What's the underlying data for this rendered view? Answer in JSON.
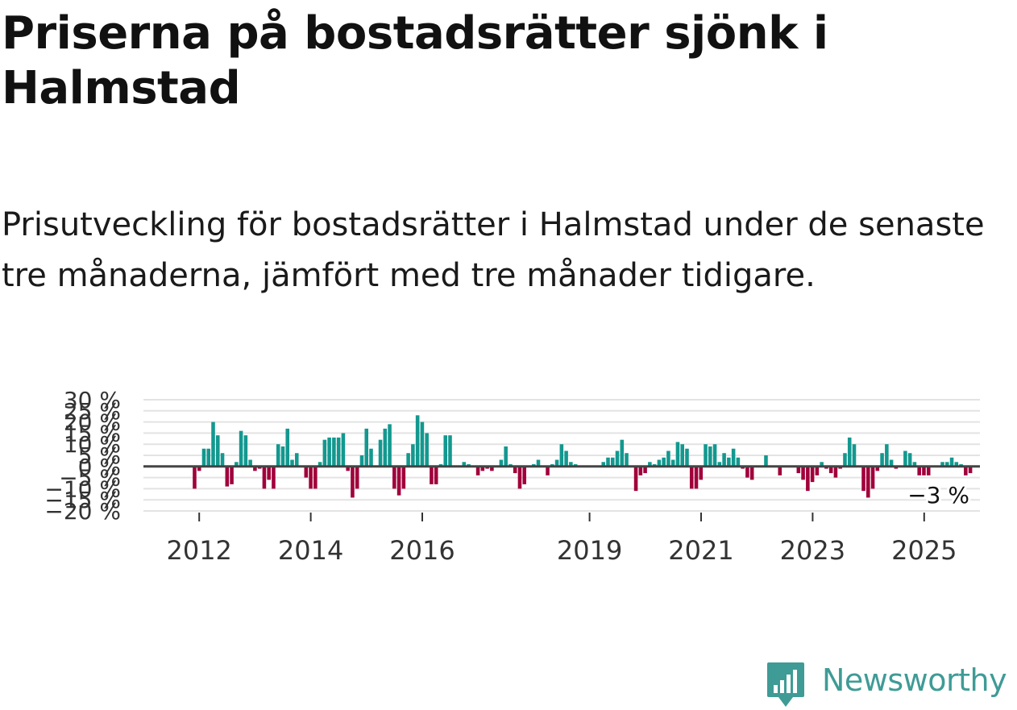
{
  "header": {
    "title": "Priserna på bostadsrätter sjönk i Halmstad",
    "subtitle": "Prisutveckling för bostadsrätter i Halmstad under de senaste tre månaderna, jämfört med tre månader tidigare."
  },
  "branding": {
    "logo_text": "Newsworthy",
    "logo_color": "#3f9b96"
  },
  "colors": {
    "positive": "#13988f",
    "negative": "#a0003a",
    "grid": "#e3e3e3",
    "zero_line": "#444444"
  },
  "chart_data": {
    "type": "bar",
    "title": "",
    "xlabel": "",
    "ylabel": "",
    "ylim": [
      -20,
      30
    ],
    "y_ticks": [
      {
        "value": 30,
        "label": "30 %"
      },
      {
        "value": 25,
        "label": "25 %"
      },
      {
        "value": 20,
        "label": "20 %"
      },
      {
        "value": 15,
        "label": "15 %"
      },
      {
        "value": 10,
        "label": "10 %"
      },
      {
        "value": 5,
        "label": "5 %"
      },
      {
        "value": 0,
        "label": "0 %"
      },
      {
        "value": -5,
        "label": "−5 %"
      },
      {
        "value": -10,
        "label": "−10 %"
      },
      {
        "value": -15,
        "label": "−15 %"
      },
      {
        "value": -20,
        "label": "−20 %"
      }
    ],
    "x_start": 2011.0,
    "x_end": 2026.0,
    "x_ticks": [
      {
        "value": 2012,
        "label": "2012"
      },
      {
        "value": 2014,
        "label": "2014"
      },
      {
        "value": 2016,
        "label": "2016"
      },
      {
        "value": 2019,
        "label": "2019"
      },
      {
        "value": 2021,
        "label": "2021"
      },
      {
        "value": 2023,
        "label": "2023"
      },
      {
        "value": 2025,
        "label": "2025"
      }
    ],
    "first_bar_x": 2011.917,
    "bar_step": 0.0833,
    "values": [
      -10,
      -2,
      8,
      8,
      20,
      14,
      6,
      -9,
      -8,
      2,
      16,
      14,
      3,
      -2,
      -1,
      -10,
      -6,
      -10,
      10,
      9,
      17,
      3,
      6,
      0,
      -5,
      -10,
      -10,
      2,
      12,
      13,
      13,
      13,
      15,
      -2,
      -14,
      -10,
      5,
      17,
      8,
      0,
      12,
      17,
      19,
      -10,
      -13,
      -10,
      6,
      10,
      23,
      20,
      15,
      -8,
      -8,
      1,
      14,
      14,
      0,
      0,
      2,
      1,
      0,
      -4,
      -2,
      -1,
      -2,
      0,
      3,
      9,
      1,
      -3,
      -10,
      -8,
      0,
      1,
      3,
      0,
      -4,
      1,
      3,
      10,
      7,
      2,
      1,
      0,
      0,
      0,
      0,
      0,
      2,
      4,
      4,
      7,
      12,
      6,
      0,
      -11,
      -4,
      -3,
      2,
      1,
      3,
      4,
      7,
      3,
      11,
      10,
      8,
      -10,
      -10,
      -6,
      10,
      9,
      10,
      2,
      6,
      4,
      8,
      4,
      -1,
      -5,
      -6,
      0,
      0,
      5,
      0,
      0,
      -4,
      0,
      0,
      0,
      -3,
      -6,
      -11,
      -7,
      -4,
      2,
      -1,
      -3,
      -5,
      -1,
      6,
      13,
      10,
      0,
      -11,
      -14,
      -10,
      -2,
      6,
      10,
      3,
      -1,
      0,
      7,
      6,
      2,
      -4,
      -4,
      -4,
      0,
      0,
      2,
      2,
      4,
      2,
      1,
      -4,
      -3
    ],
    "last_value_label": "−3 %"
  }
}
